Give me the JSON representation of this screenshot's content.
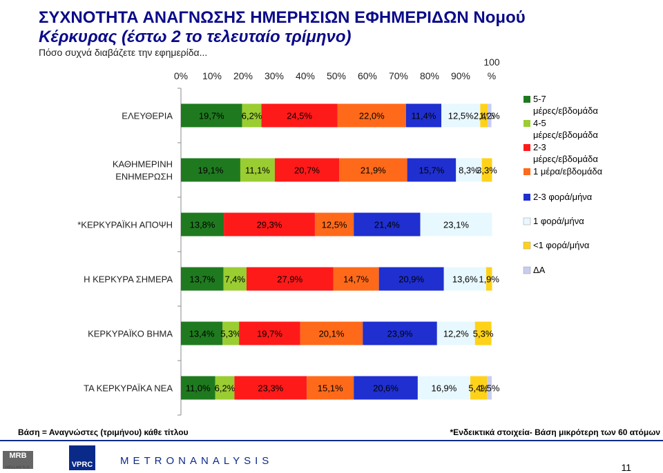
{
  "header": {
    "title_line1": "ΣΥΧΝΟΤΗΤΑ ΑΝΑΓΝΩΣΗΣ ΗΜΕΡΗΣΙΩΝ ΕΦΗΜΕΡΙΔΩΝ Νομού",
    "title_line2": "Κέρκυρας  (έστω 2  το τελευταίο τρίμηνο)",
    "subtitle": "Πόσο συχνά διαβάζετε την εφημερίδα..."
  },
  "footer": {
    "base_note": "Βάση = Αναγνώστες (τριμήνου) κάθε τίτλου",
    "small_base_note": "*Ενδεικτικά στοιχεία- Βάση μικρότερη των 60 ατόμων",
    "logo_mrb": "MRB",
    "logo_mrb_sub": "HELLAS S.A.",
    "logo_vprc": "VPRC",
    "logo_metron": "METRONANALYSIS",
    "page_number": "11"
  },
  "chart_data": {
    "type": "bar",
    "orientation": "horizontal",
    "stacked": true,
    "x_ticks": [
      "0%",
      "10%",
      "20%",
      "30%",
      "40%",
      "50%",
      "60%",
      "70%",
      "80%",
      "90%",
      "100\n%"
    ],
    "xlim": [
      0,
      100
    ],
    "legend_position": "right",
    "categories": [
      "ΕΛΕΥΘΕΡΙΑ",
      "ΚΑΘΗΜΕΡΙΝΗ\nΕΝΗΜΕΡΩΣΗ",
      "*ΚΕΡΚΥΡΑΪΚΗ ΑΠΟΨΗ",
      "Η ΚΕΡΚΥΡΑ ΣΗΜΕΡΑ",
      "ΚΕΡΚΥΡΑΪΚΟ ΒΗΜΑ",
      "ΤΑ ΚΕΡΚΥΡΑΪΚΑ ΝΕΑ"
    ],
    "series": [
      {
        "name": "5-7 μέρες/εβδομάδα",
        "color": "#1f7a1f",
        "values": [
          19.7,
          19.1,
          13.8,
          13.7,
          13.4,
          11.0
        ],
        "labels": [
          "19,7%",
          "19,1%",
          "13,8%",
          "13,7%",
          "13,4%",
          "11,0%"
        ]
      },
      {
        "name": "4-5 μέρες/εβδομάδα",
        "color": "#9acd32",
        "values": [
          6.2,
          11.1,
          0,
          7.4,
          5.3,
          6.2
        ],
        "labels": [
          "6,2%",
          "11,1%",
          "",
          "7,4%",
          "5,3%",
          "6,2%"
        ]
      },
      {
        "name": "2-3 μέρες/εβδομάδα",
        "color": "#ff1a1a",
        "values": [
          24.5,
          20.7,
          29.3,
          27.9,
          19.7,
          23.3
        ],
        "labels": [
          "24,5%",
          "20,7%",
          "29,3%",
          "27,9%",
          "19,7%",
          "23,3%"
        ]
      },
      {
        "name": "1 μέρα/εβδομάδα",
        "color": "#ff6a1a",
        "values": [
          22.0,
          21.9,
          12.5,
          14.7,
          20.1,
          15.1
        ],
        "labels": [
          "22,0%",
          "21,9%",
          "12,5%",
          "14,7%",
          "20,1%",
          "15,1%"
        ]
      },
      {
        "name": "2-3 φορά/μήνα",
        "color": "#1f2fd0",
        "values": [
          11.4,
          15.7,
          21.4,
          20.9,
          23.9,
          20.6
        ],
        "labels": [
          "11,4%",
          "15,7%",
          "21,4%",
          "20,9%",
          "23,9%",
          "20,6%"
        ]
      },
      {
        "name": "1 φορά/μήνα",
        "color": "#e8f8ff",
        "values": [
          12.5,
          8.3,
          23.1,
          13.6,
          12.2,
          16.9
        ],
        "labels": [
          "12,5%",
          "8,3%",
          "23,1%",
          "13,6%",
          "12,2%",
          "16,9%"
        ]
      },
      {
        "name": "<1 φορά/μήνα",
        "color": "#ffd21a",
        "values": [
          2.4,
          3.3,
          0,
          1.9,
          5.3,
          5.4
        ],
        "labels": [
          "2,4%",
          "3,3%",
          "",
          "1,9%",
          "5,3%",
          "5,4%"
        ]
      },
      {
        "name": "ΔΑ",
        "color": "#c8cdf0",
        "values": [
          1.2,
          0,
          0,
          0,
          0,
          1.5
        ],
        "labels": [
          "1,2%",
          "",
          "",
          "",
          "",
          "1,5%"
        ]
      }
    ]
  }
}
